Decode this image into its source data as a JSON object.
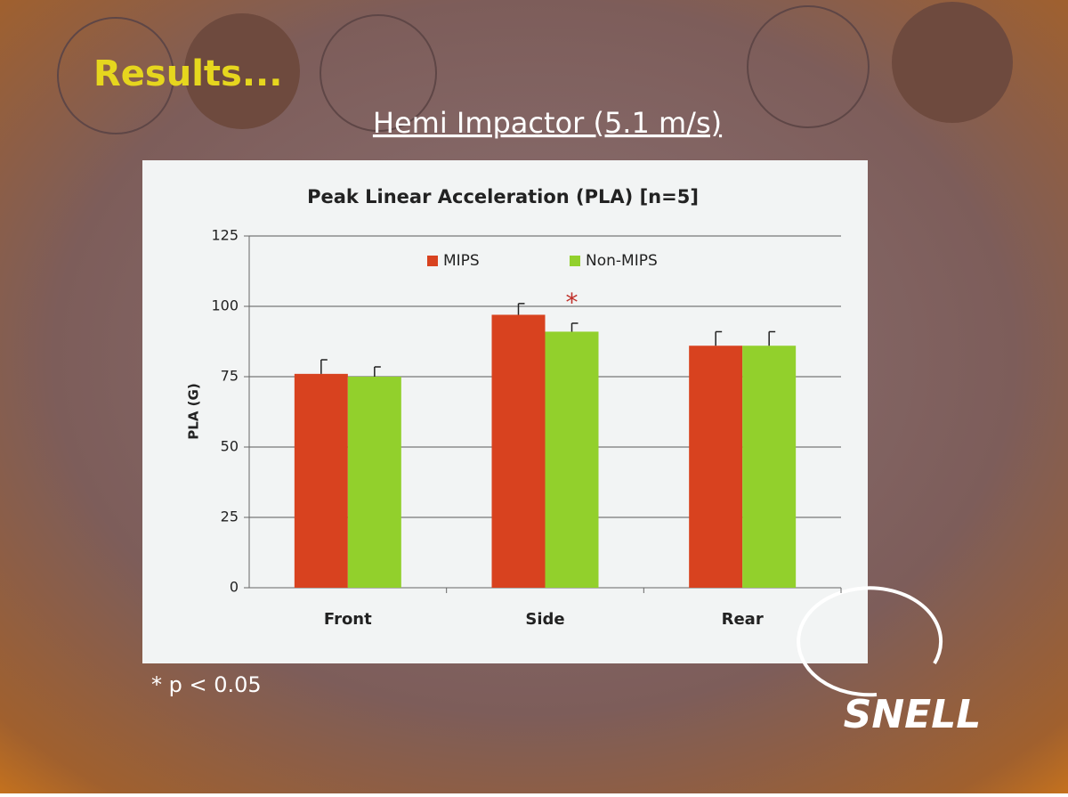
{
  "slide": {
    "heading": "Results...",
    "subtitle": "Hemi Impactor (5.1 m/s)",
    "footnote": "* p < 0.05",
    "logo": "SNELL"
  },
  "chart_data": {
    "type": "bar",
    "title": "Peak Linear Acceleration (PLA)  [n=5]",
    "y_label": "PLA (G)",
    "categories": [
      "Front",
      "Side",
      "Rear"
    ],
    "series": [
      {
        "name": "MIPS",
        "color": "#d8421f",
        "values": [
          76,
          97,
          86
        ],
        "errors": [
          5,
          4,
          5
        ]
      },
      {
        "name": "Non-MIPS",
        "color": "#92d02c",
        "values": [
          75,
          91,
          86
        ],
        "errors": [
          3.5,
          3,
          5
        ]
      }
    ],
    "annotations": [
      {
        "text": "*",
        "category": "Side",
        "series": "Non-MIPS"
      }
    ],
    "ylim": [
      0,
      125
    ],
    "yticks": [
      0,
      25,
      50,
      75,
      100,
      125
    ],
    "grid": true,
    "legend": "top"
  }
}
